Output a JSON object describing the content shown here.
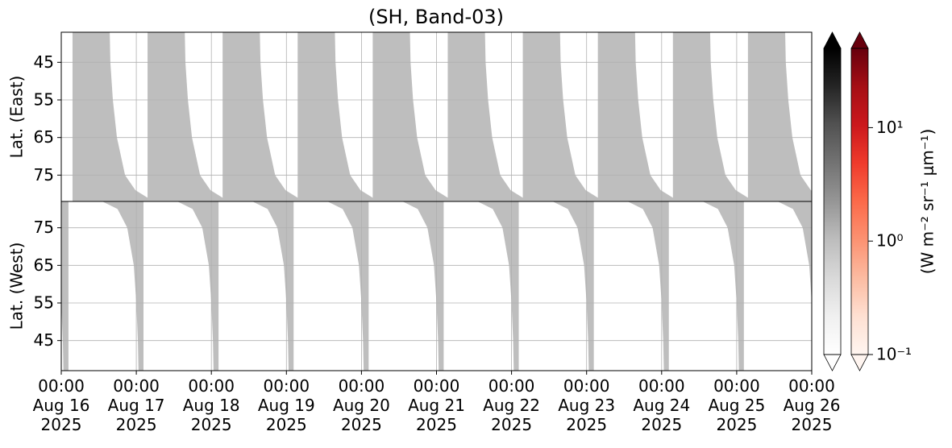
{
  "chart_data": {
    "type": "swath",
    "title": "(SH, Band-03)",
    "xlim": [
      0,
      240
    ],
    "xticks": [
      {
        "value": 0,
        "label": "00:00\nAug 16\n2025"
      },
      {
        "value": 24,
        "label": "00:00\nAug 17\n2025"
      },
      {
        "value": 48,
        "label": "00:00\nAug 18\n2025"
      },
      {
        "value": 72,
        "label": "00:00\nAug 19\n2025"
      },
      {
        "value": 96,
        "label": "00:00\nAug 20\n2025"
      },
      {
        "value": 120,
        "label": "00:00\nAug 21\n2025"
      },
      {
        "value": 144,
        "label": "00:00\nAug 22\n2025"
      },
      {
        "value": 168,
        "label": "00:00\nAug 23\n2025"
      },
      {
        "value": 192,
        "label": "00:00\nAug 24\n2025"
      },
      {
        "value": 216,
        "label": "00:00\nAug 25\n2025"
      },
      {
        "value": 240,
        "label": "00:00\nAug 26\n2025"
      }
    ],
    "grid": true,
    "panels": [
      {
        "ylabel": "Lat. (East)",
        "ylim": [
          37,
          82
        ],
        "inverted": true,
        "yticks": [
          45,
          55,
          65,
          75
        ],
        "swath_x": [
          0,
          24,
          48,
          72,
          96,
          120,
          144,
          168,
          192,
          216
        ],
        "edge_lat": [
          37,
          45,
          55,
          65,
          75,
          79,
          81,
          82
        ],
        "edge_start": [
          3.6,
          3.6,
          3.6,
          3.6,
          3.6,
          3.6,
          3.6,
          3.6
        ],
        "edge_end": [
          15.5,
          15.7,
          16.5,
          17.8,
          20.4,
          23.7,
          27.6,
          28.1
        ],
        "value": 1
      },
      {
        "ylabel": "Lat. (West)",
        "ylim": [
          37,
          82
        ],
        "inverted": false,
        "yticks": [
          45,
          55,
          65,
          75
        ],
        "swath_x": [
          -24,
          0,
          24,
          48,
          72,
          96,
          120,
          144,
          168,
          192,
          216
        ],
        "edge_lat": [
          37,
          45,
          55,
          65,
          75,
          80,
          82
        ],
        "edge_start": [
          24.7,
          24.5,
          24.0,
          23.2,
          21.1,
          18.0,
          13.1
        ],
        "edge_end": [
          26.3,
          26.3,
          26.3,
          26.3,
          26.3,
          26.3,
          26.3
        ],
        "value": 1
      }
    ],
    "clim": [
      0.1,
      50
    ],
    "log": true,
    "colorbars": [
      {
        "cmap_colors": [
          "#ffffff",
          "#f0f0f0",
          "#d9d9d9",
          "#bdbdbd",
          "#969696",
          "#737373",
          "#525252",
          "#252525",
          "#000000"
        ]
      },
      {
        "cmap_colors": [
          "#fff5f0",
          "#fee0d2",
          "#fcbba1",
          "#fc9272",
          "#fb6a4a",
          "#ef3b2c",
          "#cb181d",
          "#a50f15",
          "#67000d"
        ]
      }
    ],
    "cticks": [
      {
        "value": 0.1,
        "label": "10⁻¹"
      },
      {
        "value": 1,
        "label": "10⁰"
      },
      {
        "value": 10,
        "label": "10¹"
      }
    ],
    "clabel": "(W m⁻² sr⁻¹ μm⁻¹)"
  }
}
